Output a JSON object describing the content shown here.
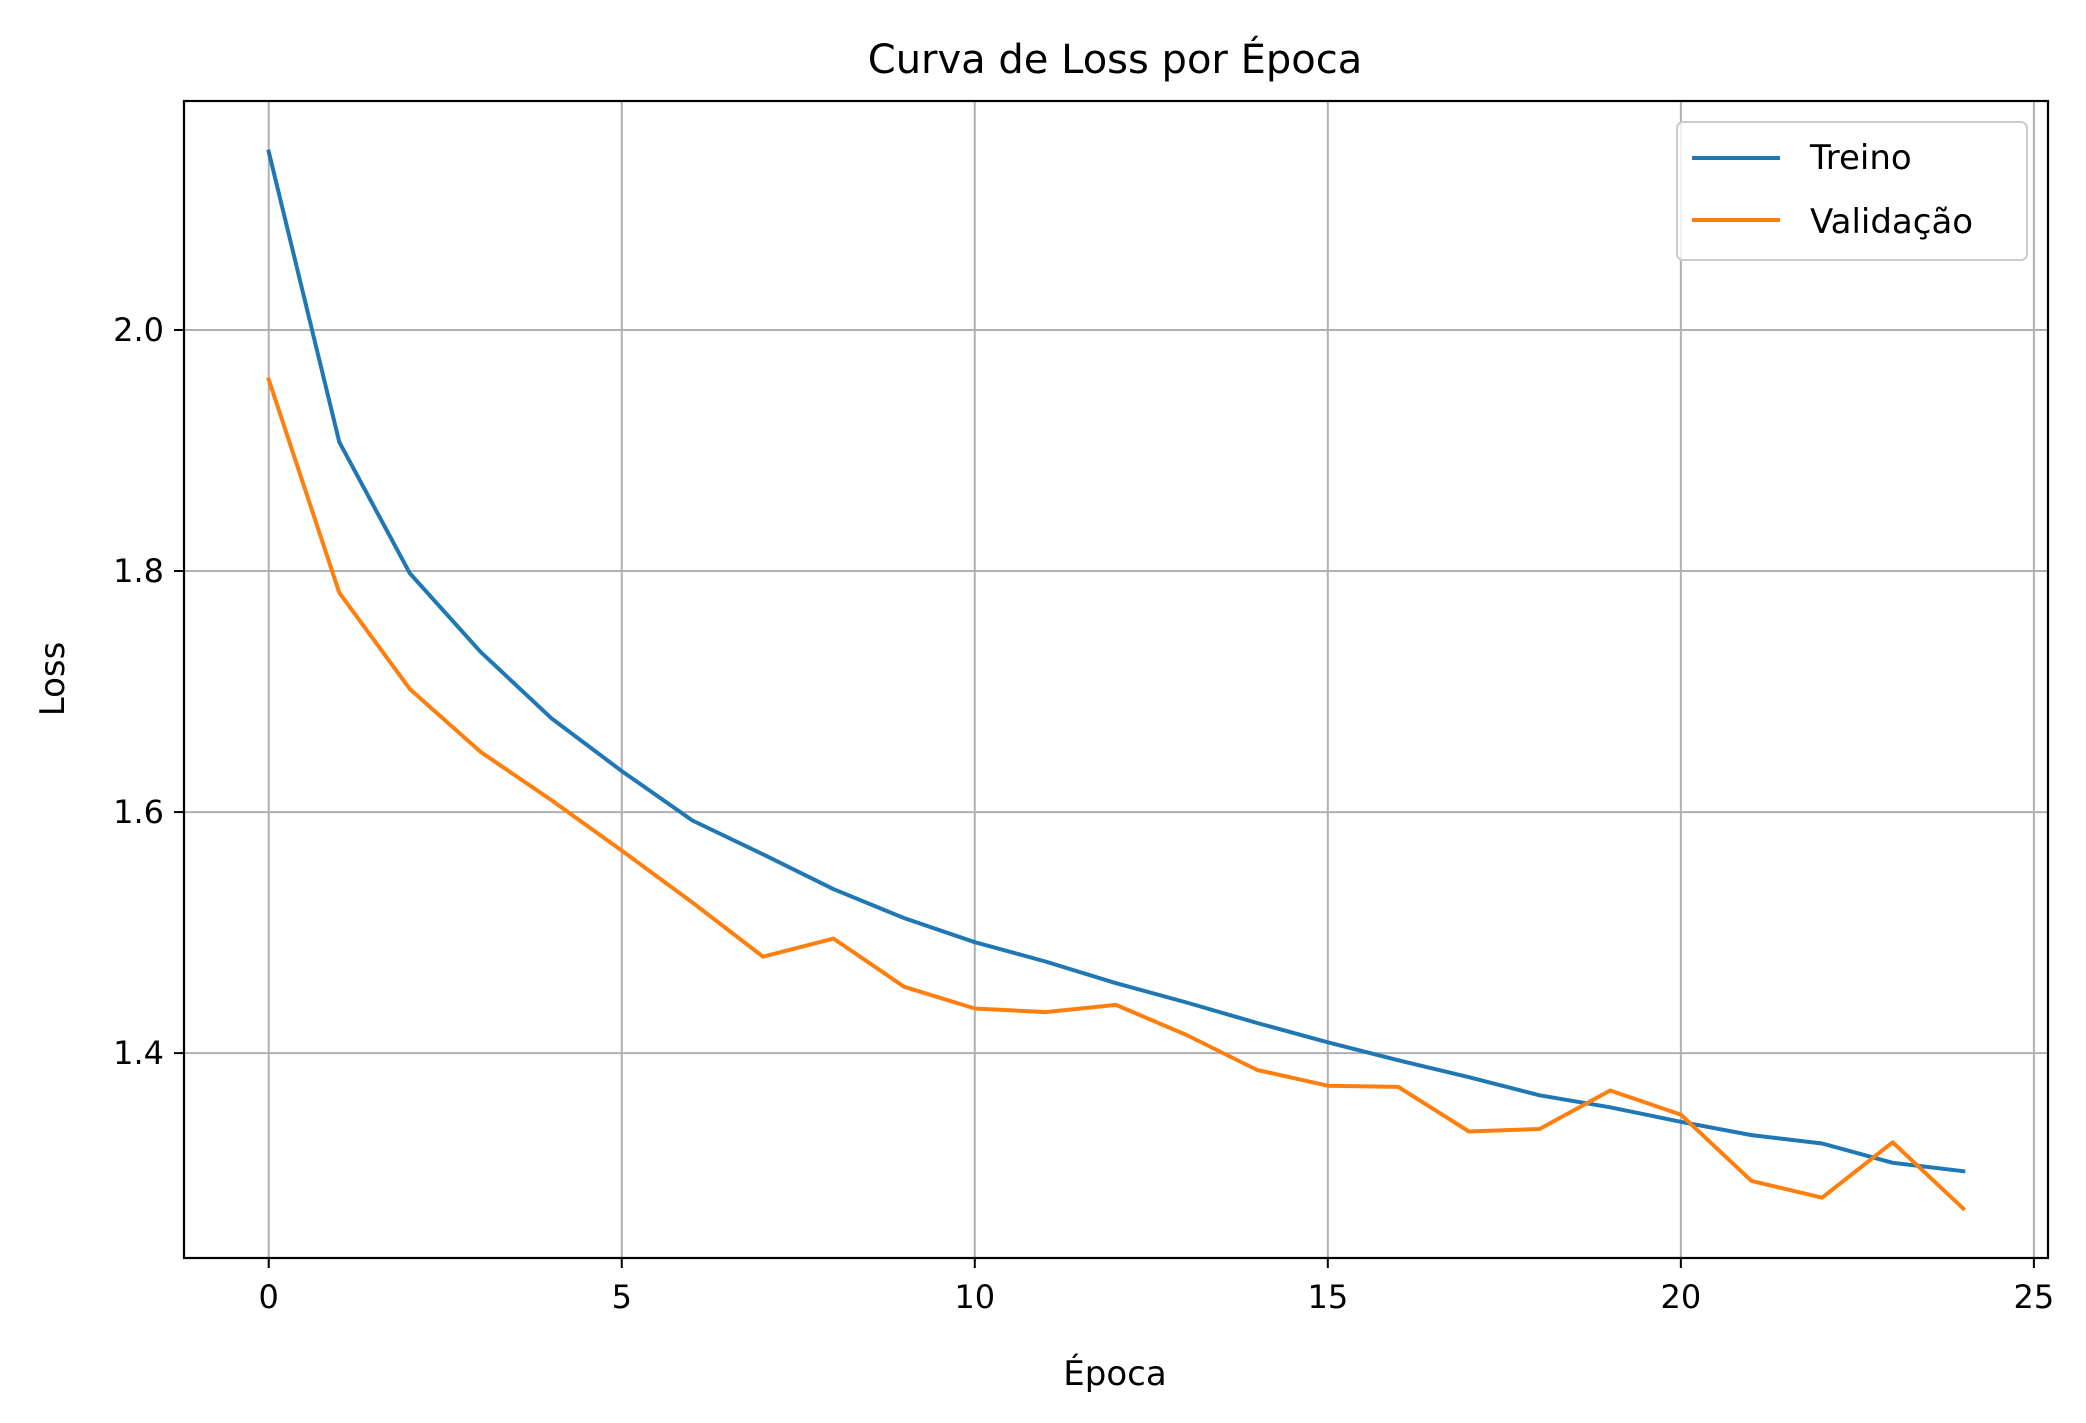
{
  "colors": {
    "treino": "#1f77b4",
    "validacao": "#ff7f0e",
    "grid": "#b0b0b0",
    "axes": "#000000"
  },
  "chart_data": {
    "type": "line",
    "title": "Curva de Loss por Época",
    "xlabel": "Época",
    "ylabel": "Loss",
    "xlim": [
      -1.2,
      25.2
    ],
    "ylim": [
      1.23,
      2.19
    ],
    "xticks": [
      0,
      5,
      10,
      15,
      20,
      25
    ],
    "yticks": [
      1.4,
      1.6,
      1.8,
      2.0
    ],
    "xtick_labels": [
      "0",
      "5",
      "10",
      "15",
      "20",
      "25"
    ],
    "ytick_labels": [
      "1.4",
      "1.6",
      "1.8",
      "2.0"
    ],
    "grid": true,
    "legend_position": "top-right",
    "x": [
      0,
      1,
      2,
      3,
      4,
      5,
      6,
      7,
      8,
      9,
      10,
      11,
      12,
      13,
      14,
      15,
      16,
      17,
      18,
      19,
      20,
      21,
      22,
      23,
      24
    ],
    "series": [
      {
        "name": "Treino",
        "color_key": "treino",
        "values": [
          2.148,
          1.907,
          1.798,
          1.733,
          1.678,
          1.634,
          1.593,
          1.565,
          1.536,
          1.512,
          1.492,
          1.476,
          1.458,
          1.442,
          1.425,
          1.409,
          1.394,
          1.38,
          1.365,
          1.355,
          1.343,
          1.332,
          1.325,
          1.309,
          1.302
        ]
      },
      {
        "name": "Validação",
        "color_key": "validacao",
        "values": [
          1.959,
          1.782,
          1.702,
          1.65,
          1.61,
          1.568,
          1.525,
          1.48,
          1.495,
          1.455,
          1.437,
          1.434,
          1.44,
          1.415,
          1.386,
          1.373,
          1.372,
          1.335,
          1.337,
          1.369,
          1.349,
          1.294,
          1.28,
          1.326,
          1.271
        ]
      }
    ]
  }
}
